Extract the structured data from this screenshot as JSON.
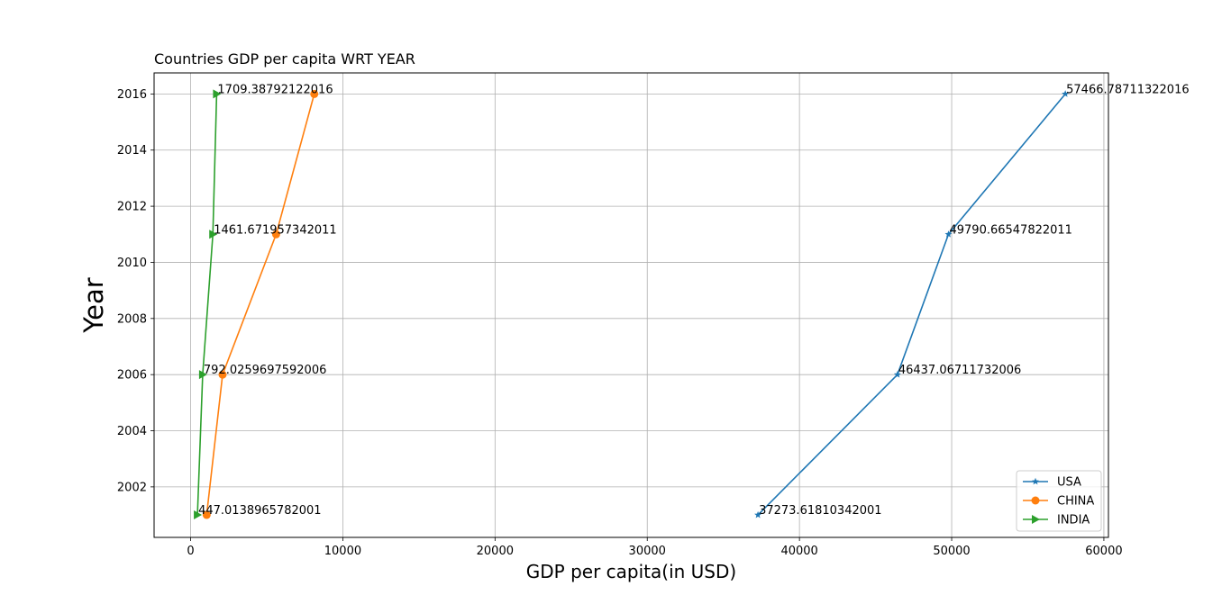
{
  "chart_data": {
    "type": "line",
    "title": "Countries GDP per capita WRT YEAR",
    "xlabel": "GDP per capita(in USD)",
    "ylabel": "Year",
    "xlim": [
      -2400,
      60300
    ],
    "ylim": [
      2000.2,
      2016.75
    ],
    "xticks": [
      0,
      10000,
      20000,
      30000,
      40000,
      50000,
      60000
    ],
    "yticks": [
      2002,
      2004,
      2006,
      2008,
      2010,
      2012,
      2014,
      2016
    ],
    "grid": true,
    "legend_position": "bottom-right",
    "series": [
      {
        "name": "USA",
        "color": "#1f77b4",
        "marker": "star",
        "x": [
          37273.6181034,
          46437.0671173,
          49790.6654782,
          57466.7871132
        ],
        "y": [
          2001,
          2006,
          2011,
          2016
        ],
        "labels": [
          "37273.61810342001",
          "46437.06711732006",
          "49790.66547822011",
          "57466.78711322016"
        ]
      },
      {
        "name": "CHINA",
        "color": "#ff7f0e",
        "marker": "circle",
        "x": [
          1053.1,
          2099.2,
          5618.1,
          8123.2
        ],
        "y": [
          2001,
          2006,
          2011,
          2016
        ],
        "labels": []
      },
      {
        "name": "INDIA",
        "color": "#2ca02c",
        "marker": "triangle-right",
        "x": [
          447.013896578,
          792.025969759,
          1461.67195734,
          1709.38792122
        ],
        "y": [
          2001,
          2006,
          2011,
          2016
        ],
        "labels": [
          "447.0138965782001",
          "792.0259697592006",
          "1461.671957342011",
          "1709.38792122016"
        ]
      }
    ]
  }
}
